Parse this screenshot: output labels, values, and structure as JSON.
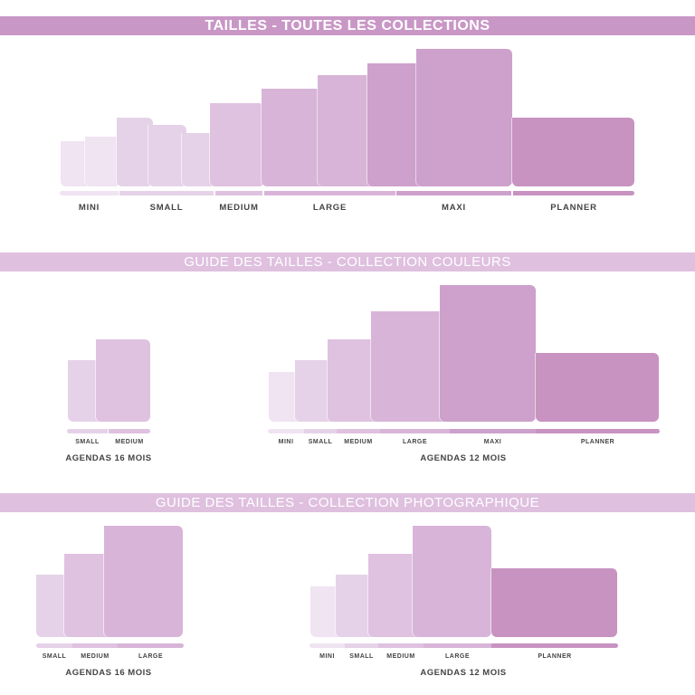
{
  "colors": {
    "header_main": "#c997c6",
    "header_sub": "#dfc0df",
    "mini": "#f0e3f2",
    "small": "#e5d2e8",
    "medium": "#dfc1e0",
    "large": "#d8b5d8",
    "maxi": "#cda1cb",
    "planner": "#c893c1"
  },
  "sections": [
    {
      "title": "TAILLES - TOUTES LES COLLECTIONS",
      "sizes": [
        "MINI",
        "SMALL",
        "MEDIUM",
        "LARGE",
        "MAXI",
        "PLANNER"
      ]
    },
    {
      "title": "GUIDE DES TAILLES - COLLECTION COULEURS",
      "groups": [
        {
          "label": "AGENDAS 16 MOIS",
          "sizes": [
            "SMALL",
            "MEDIUM"
          ]
        },
        {
          "label": "AGENDAS 12 MOIS",
          "sizes": [
            "MINI",
            "SMALL",
            "MEDIUM",
            "LARGE",
            "MAXI",
            "PLANNER"
          ]
        }
      ]
    },
    {
      "title": "GUIDE DES TAILLES - COLLECTION PHOTOGRAPHIQUE",
      "groups": [
        {
          "label": "AGENDAS 16 MOIS",
          "sizes": [
            "SMALL",
            "MEDIUM",
            "LARGE"
          ]
        },
        {
          "label": "AGENDAS 12 MOIS",
          "sizes": [
            "MINI",
            "SMALL",
            "MEDIUM",
            "LARGE",
            "PLANNER"
          ]
        }
      ]
    }
  ]
}
